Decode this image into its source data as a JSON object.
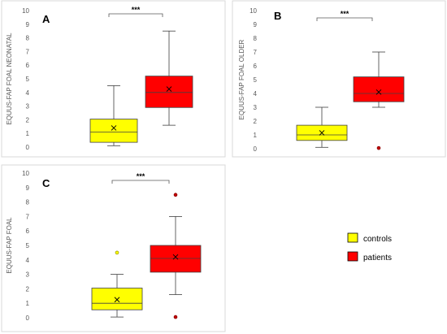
{
  "chart_data": [
    {
      "type": "box",
      "panel_label": "A",
      "ylabel": "EQUUS-FAP FOAL NEONATAL",
      "ylim": [
        0,
        10
      ],
      "yticks": [
        "0",
        "1",
        "2",
        "3",
        "4",
        "5",
        "6",
        "7",
        "8",
        "9",
        "10"
      ],
      "significance": "***",
      "series": [
        {
          "name": "controls",
          "color": "#ffff00",
          "min": 0.1,
          "q1": 0.35,
          "median": 1.1,
          "q3": 2.05,
          "max": 4.5,
          "mean": 1.4,
          "outliers": []
        },
        {
          "name": "patients",
          "color": "#ff0000",
          "min": 1.6,
          "q1": 2.9,
          "median": 4.0,
          "q3": 5.2,
          "max": 8.5,
          "mean": 4.25,
          "outliers": []
        }
      ]
    },
    {
      "type": "box",
      "panel_label": "B",
      "ylabel": "EQUUS-FAP FOAL OLDER",
      "ylim": [
        0,
        10
      ],
      "yticks": [
        "0",
        "1",
        "2",
        "3",
        "4",
        "5",
        "6",
        "7",
        "8",
        "9",
        "10"
      ],
      "significance": "***",
      "series": [
        {
          "name": "controls",
          "color": "#ffff00",
          "min": 0.1,
          "q1": 0.6,
          "median": 1.0,
          "q3": 1.7,
          "max": 3.0,
          "mean": 1.15,
          "outliers": []
        },
        {
          "name": "patients",
          "color": "#ff0000",
          "min": 3.0,
          "q1": 3.4,
          "median": 4.0,
          "q3": 5.2,
          "max": 7.0,
          "mean": 4.1,
          "outliers": [
            0.05
          ]
        }
      ]
    },
    {
      "type": "box",
      "panel_label": "C",
      "ylabel": "EQUUS-FAP FOAL",
      "ylim": [
        0,
        10
      ],
      "yticks": [
        "0",
        "1",
        "2",
        "3",
        "4",
        "5",
        "6",
        "7",
        "8",
        "9",
        "10"
      ],
      "significance": "***",
      "series": [
        {
          "name": "controls",
          "color": "#ffff00",
          "min": 0.05,
          "q1": 0.55,
          "median": 1.0,
          "q3": 2.05,
          "max": 3.0,
          "mean": 1.25,
          "outliers": [
            4.5
          ]
        },
        {
          "name": "patients",
          "color": "#ff0000",
          "min": 1.6,
          "q1": 3.15,
          "median": 4.1,
          "q3": 5.0,
          "max": 7.0,
          "mean": 4.2,
          "outliers": [
            8.5,
            0.05
          ]
        }
      ]
    }
  ],
  "legend": [
    {
      "label": "controls",
      "color": "#ffff00"
    },
    {
      "label": "patients",
      "color": "#ff0000"
    }
  ]
}
